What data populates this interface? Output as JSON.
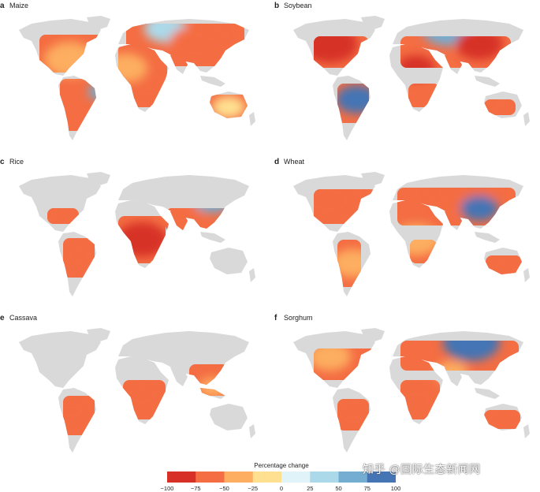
{
  "panels": [
    {
      "letter": "a",
      "crop": "Maize"
    },
    {
      "letter": "b",
      "crop": "Soybean"
    },
    {
      "letter": "c",
      "crop": "Rice"
    },
    {
      "letter": "d",
      "crop": "Wheat"
    },
    {
      "letter": "e",
      "crop": "Cassava"
    },
    {
      "letter": "f",
      "crop": "Sorghum"
    }
  ],
  "legend": {
    "title": "Percentage change",
    "ticks": [
      "−100",
      "−75",
      "−50",
      "−25",
      "0",
      "25",
      "50",
      "75",
      "100"
    ],
    "range": [
      -100,
      100
    ],
    "colors": [
      "#d73027",
      "#f46d43",
      "#fdae61",
      "#fee090",
      "#e0f3f8",
      "#abd9e9",
      "#74add1",
      "#4575b4"
    ]
  },
  "watermark": "知乎 @国际生态新闻网",
  "colors": {
    "land": "#d9d9d9",
    "background": "#ffffff"
  }
}
